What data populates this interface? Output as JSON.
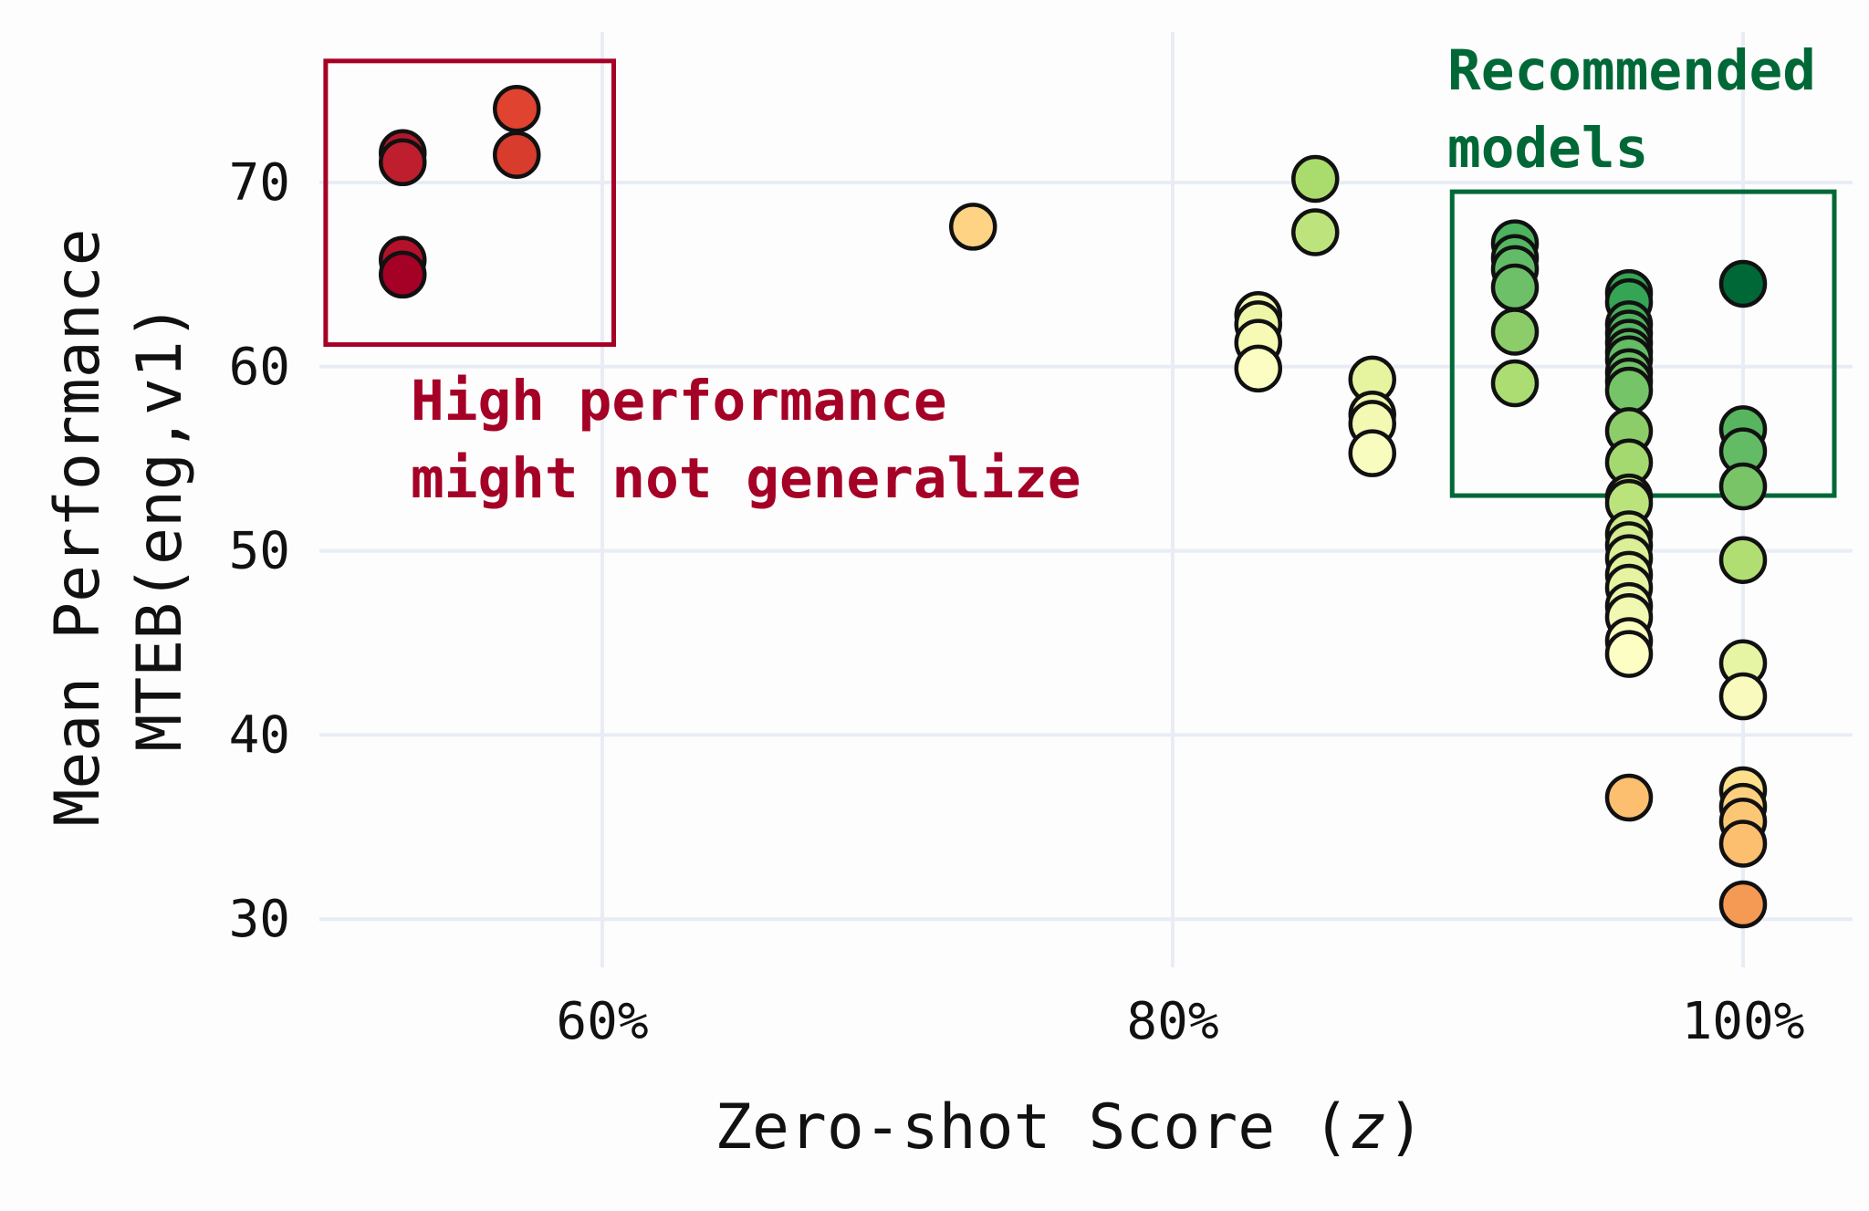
{
  "chart_data": {
    "type": "scatter",
    "title": "",
    "xlabel": "Zero-shot Score (z)",
    "xlabel_parts": {
      "prefix": "Zero-shot Score (",
      "var": "z",
      "suffix": ")"
    },
    "ylabel_lines": [
      "Mean Performance",
      "MTEB(eng,v1)"
    ],
    "xlim": [
      50,
      103
    ],
    "ylim": [
      27,
      77
    ],
    "x_ticks": [
      60,
      80,
      100
    ],
    "x_tick_labels": [
      "60%",
      "80%",
      "100%"
    ],
    "y_ticks": [
      30,
      40,
      50,
      60,
      70
    ],
    "y_tick_labels": [
      "30",
      "40",
      "50",
      "60",
      "70"
    ],
    "grid": true,
    "legend": "none",
    "grid_color": "#e8ecf5",
    "annotations": [
      {
        "lines": [
          "High performance",
          "might not generalize"
        ],
        "color": "#a50026",
        "box": {
          "x": [
            50.3,
            60.4
          ],
          "y": [
            61.2,
            76.6
          ]
        }
      },
      {
        "lines": [
          "Recommended",
          "models"
        ],
        "color": "#006837",
        "box": {
          "x": [
            89.8,
            103.2
          ],
          "y": [
            53.0,
            69.5
          ]
        }
      }
    ],
    "points": [
      {
        "x": 53,
        "y": 71.6,
        "color": "#b2182b"
      },
      {
        "x": 53,
        "y": 71.1,
        "color": "#be1e2d"
      },
      {
        "x": 53,
        "y": 65.8,
        "color": "#b5112a"
      },
      {
        "x": 53,
        "y": 65.0,
        "color": "#a50026"
      },
      {
        "x": 57,
        "y": 74.0,
        "color": "#e0432f"
      },
      {
        "x": 57,
        "y": 71.5,
        "color": "#d73c2c"
      },
      {
        "x": 73,
        "y": 67.6,
        "color": "#fed384"
      },
      {
        "x": 85,
        "y": 70.2,
        "color": "#a9db6d"
      },
      {
        "x": 85,
        "y": 67.3,
        "color": "#bde47c"
      },
      {
        "x": 83,
        "y": 62.8,
        "color": "#f3f9b0"
      },
      {
        "x": 83,
        "y": 62.3,
        "color": "#eef7a8"
      },
      {
        "x": 83,
        "y": 61.3,
        "color": "#f6fab5"
      },
      {
        "x": 83,
        "y": 59.9,
        "color": "#fbfdc2"
      },
      {
        "x": 87,
        "y": 59.3,
        "color": "#e6f4a0"
      },
      {
        "x": 87,
        "y": 57.4,
        "color": "#eef7ac"
      },
      {
        "x": 87,
        "y": 56.9,
        "color": "#f3f9b3"
      },
      {
        "x": 87,
        "y": 55.3,
        "color": "#f9fcbf"
      },
      {
        "x": 92,
        "y": 66.7,
        "color": "#4db25e"
      },
      {
        "x": 92,
        "y": 65.9,
        "color": "#56b662"
      },
      {
        "x": 92,
        "y": 65.3,
        "color": "#62bb66"
      },
      {
        "x": 92,
        "y": 64.3,
        "color": "#6dc067"
      },
      {
        "x": 92,
        "y": 61.9,
        "color": "#8ccd6a"
      },
      {
        "x": 92,
        "y": 59.1,
        "color": "#abdd72"
      },
      {
        "x": 96,
        "y": 64.0,
        "color": "#35a455"
      },
      {
        "x": 96,
        "y": 63.5,
        "color": "#35a455"
      },
      {
        "x": 96,
        "y": 62.3,
        "color": "#46ad5a"
      },
      {
        "x": 96,
        "y": 61.8,
        "color": "#4fb25e"
      },
      {
        "x": 96,
        "y": 61.3,
        "color": "#57b661"
      },
      {
        "x": 96,
        "y": 60.8,
        "color": "#5eb963"
      },
      {
        "x": 96,
        "y": 60.4,
        "color": "#64bc64"
      },
      {
        "x": 96,
        "y": 59.7,
        "color": "#6bbf66"
      },
      {
        "x": 96,
        "y": 59.2,
        "color": "#70c267"
      },
      {
        "x": 96,
        "y": 58.7,
        "color": "#75c468"
      },
      {
        "x": 96,
        "y": 56.5,
        "color": "#8ccd6a"
      },
      {
        "x": 96,
        "y": 54.8,
        "color": "#a3d96f"
      },
      {
        "x": 96,
        "y": 52.9,
        "color": "#b8e27a"
      },
      {
        "x": 96,
        "y": 52.6,
        "color": "#bbe37c"
      },
      {
        "x": 96,
        "y": 50.9,
        "color": "#cde98a"
      },
      {
        "x": 96,
        "y": 50.3,
        "color": "#d4ec90"
      },
      {
        "x": 96,
        "y": 49.6,
        "color": "#daef96"
      },
      {
        "x": 96,
        "y": 48.7,
        "color": "#e1f29c"
      },
      {
        "x": 96,
        "y": 48.0,
        "color": "#e6f4a2"
      },
      {
        "x": 96,
        "y": 47.0,
        "color": "#ecf6aa"
      },
      {
        "x": 96,
        "y": 46.4,
        "color": "#f1f8b1"
      },
      {
        "x": 96,
        "y": 45.1,
        "color": "#fafdbf"
      },
      {
        "x": 96,
        "y": 44.4,
        "color": "#fdfec4"
      },
      {
        "x": 96,
        "y": 36.6,
        "color": "#fbbf6f"
      },
      {
        "x": 100,
        "y": 64.5,
        "color": "#006837"
      },
      {
        "x": 100,
        "y": 56.6,
        "color": "#57b55f"
      },
      {
        "x": 100,
        "y": 55.4,
        "color": "#63bb65"
      },
      {
        "x": 100,
        "y": 53.5,
        "color": "#7ac468"
      },
      {
        "x": 100,
        "y": 49.5,
        "color": "#b1de72"
      },
      {
        "x": 100,
        "y": 43.9,
        "color": "#e6f5a3"
      },
      {
        "x": 100,
        "y": 42.1,
        "color": "#f8fbbd"
      },
      {
        "x": 100,
        "y": 37.0,
        "color": "#fde08c"
      },
      {
        "x": 100,
        "y": 36.1,
        "color": "#fdcf7e"
      },
      {
        "x": 100,
        "y": 35.3,
        "color": "#fcc775"
      },
      {
        "x": 100,
        "y": 34.1,
        "color": "#fbbf6f"
      },
      {
        "x": 100,
        "y": 30.8,
        "color": "#f59a55"
      }
    ]
  }
}
